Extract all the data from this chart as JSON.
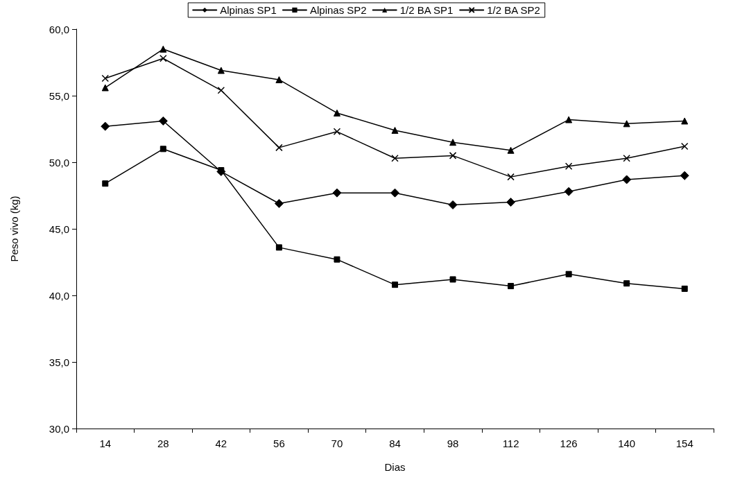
{
  "chart_data": {
    "type": "line",
    "xlabel": "Dias",
    "ylabel": "Peso vivo (kg)",
    "categories": [
      "14",
      "28",
      "42",
      "56",
      "70",
      "84",
      "98",
      "112",
      "126",
      "140",
      "154"
    ],
    "ylim": [
      30,
      60
    ],
    "yticks": [
      {
        "value": 30,
        "label": "30,0"
      },
      {
        "value": 35,
        "label": "35,0"
      },
      {
        "value": 40,
        "label": "40,0"
      },
      {
        "value": 45,
        "label": "45,0"
      },
      {
        "value": 50,
        "label": "50,0"
      },
      {
        "value": 55,
        "label": "55,0"
      },
      {
        "value": 60,
        "label": "60,0"
      }
    ],
    "grid": false,
    "legend": "top",
    "line_style": "solid",
    "series": [
      {
        "name": "Alpinas SP1",
        "color": "#000000",
        "marker": "diamond",
        "values": [
          52.7,
          53.1,
          49.3,
          46.9,
          47.7,
          47.7,
          46.8,
          47.0,
          47.8,
          48.7,
          49.0
        ]
      },
      {
        "name": "Alpinas SP2",
        "color": "#000000",
        "marker": "square",
        "values": [
          48.4,
          51.0,
          49.4,
          43.6,
          42.7,
          40.8,
          41.2,
          40.7,
          41.6,
          40.9,
          40.5
        ]
      },
      {
        "name": "1/2 BA SP1",
        "color": "#000000",
        "marker": "triangle",
        "values": [
          55.6,
          58.5,
          56.9,
          56.2,
          53.7,
          52.4,
          51.5,
          50.9,
          53.2,
          52.9,
          53.1
        ]
      },
      {
        "name": "1/2 BA SP2",
        "color": "#000000",
        "marker": "cross",
        "values": [
          56.3,
          57.8,
          55.4,
          51.1,
          52.3,
          50.3,
          50.5,
          48.9,
          49.7,
          50.3,
          51.2
        ]
      }
    ]
  }
}
